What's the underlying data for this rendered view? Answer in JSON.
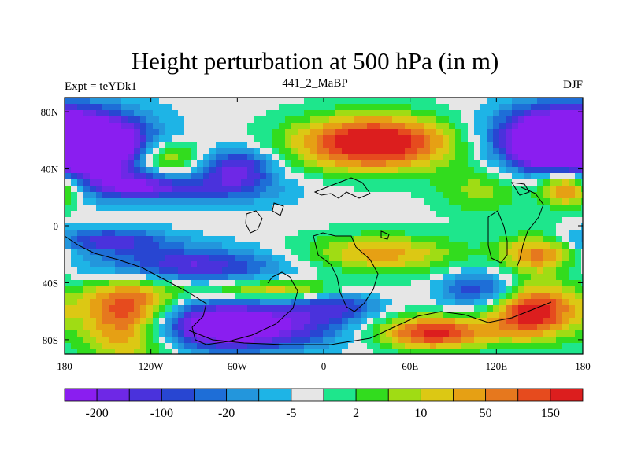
{
  "chart_data": {
    "type": "heatmap",
    "title": "Height perturbation at 500 hPa (in m)",
    "left_string": "Expt = teYDk1",
    "center_string": "441_2_MaBP",
    "right_string": "DJF",
    "x_ticks": [
      "180",
      "120W",
      "60W",
      "0",
      "60E",
      "120E",
      "180"
    ],
    "y_ticks": [
      "80N",
      "40N",
      "0",
      "40S",
      "80S"
    ],
    "xlim": [
      -180,
      180
    ],
    "ylim": [
      -90,
      90
    ],
    "colorbar": {
      "labels": [
        "-200",
        "-100",
        "-20",
        "-5",
        "2",
        "10",
        "50",
        "150"
      ],
      "colors": [
        "#8a1ef0",
        "#6e28e6",
        "#4a32dc",
        "#2846d2",
        "#1e6ed7",
        "#2396dc",
        "#1eb4e6",
        "#e6e6e6",
        "#1ee68c",
        "#32dc1e",
        "#a0dc14",
        "#dcc814",
        "#e6a014",
        "#e6781e",
        "#e64b1e",
        "#dc1e1e"
      ]
    },
    "blobs": [
      {
        "lon": -160,
        "lat": 55,
        "sx": 30,
        "sy": 16,
        "v": -11
      },
      {
        "lon": -110,
        "lat": 48,
        "sx": 18,
        "sy": 9,
        "v": 5
      },
      {
        "lon": -60,
        "lat": 40,
        "sx": 18,
        "sy": 10,
        "v": -6
      },
      {
        "lon": -90,
        "lat": 25,
        "sx": 45,
        "sy": 8,
        "v": -3
      },
      {
        "lon": -130,
        "lat": 28,
        "sx": 25,
        "sy": 6,
        "v": -4
      },
      {
        "lon": 35,
        "lat": 58,
        "sx": 40,
        "sy": 14,
        "v": 9.5
      },
      {
        "lon": 110,
        "lat": 25,
        "sx": 22,
        "sy": 12,
        "v": 3
      },
      {
        "lon": 160,
        "lat": 60,
        "sx": 30,
        "sy": 16,
        "v": -11
      },
      {
        "lon": 170,
        "lat": 28,
        "sx": 15,
        "sy": 10,
        "v": 8
      },
      {
        "lon": -150,
        "lat": -10,
        "sx": 30,
        "sy": 6,
        "v": -5
      },
      {
        "lon": -100,
        "lat": -28,
        "sx": 50,
        "sy": 9,
        "v": -6
      },
      {
        "lon": 40,
        "lat": -20,
        "sx": 40,
        "sy": 10,
        "v": 5
      },
      {
        "lon": 150,
        "lat": -20,
        "sx": 20,
        "sy": 10,
        "v": 6
      },
      {
        "lon": -35,
        "lat": -45,
        "sx": 40,
        "sy": 5,
        "v": 5
      },
      {
        "lon": -135,
        "lat": -65,
        "sx": 25,
        "sy": 20,
        "v": 10
      },
      {
        "lon": -70,
        "lat": -70,
        "sx": 50,
        "sy": 12,
        "v": -10
      },
      {
        "lon": 75,
        "lat": -75,
        "sx": 28,
        "sy": 9,
        "v": 8
      },
      {
        "lon": 145,
        "lat": -60,
        "sx": 22,
        "sy": 14,
        "v": 9
      },
      {
        "lon": 110,
        "lat": -45,
        "sx": 20,
        "sy": 10,
        "v": -5
      },
      {
        "lon": 10,
        "lat": -55,
        "sx": 20,
        "sy": 8,
        "v": -4
      }
    ]
  }
}
